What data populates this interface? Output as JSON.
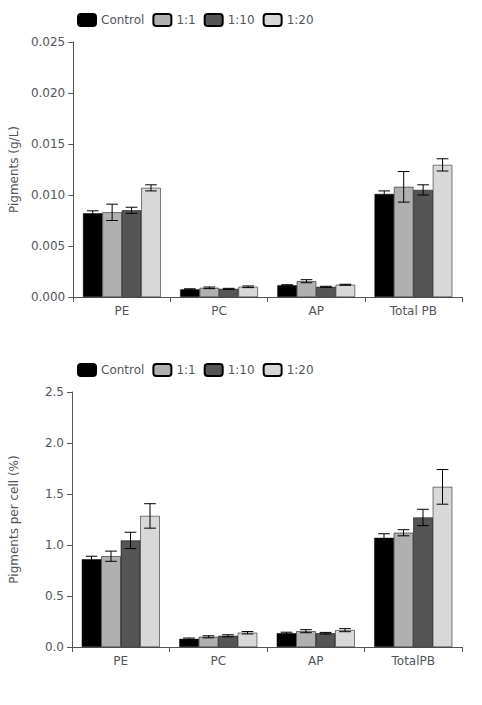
{
  "chart_data": [
    {
      "type": "bar",
      "categories": [
        "PE",
        "PC",
        "AP",
        "Total PB"
      ],
      "ylabel": "Pigments (g/L)",
      "ylim": [
        0,
        0.025
      ],
      "yticks": [
        {
          "value": 0.0,
          "label": "0.000"
        },
        0.005,
        {
          "value": 0.01,
          "label": "0.010"
        },
        0.015,
        {
          "value": 0.02,
          "label": "0.020"
        },
        0.025
      ],
      "grid": false,
      "legend": "upper left",
      "series": [
        {
          "name": "Control",
          "color": "#000000",
          "values": [
            0.0082,
            0.00075,
            0.00115,
            0.0101
          ],
          "errors": [
            0.00025,
            5.5e-05,
            5.5e-05,
            0.0003
          ]
        },
        {
          "name": "1:1",
          "color": "#b0b0b0",
          "values": [
            0.0083,
            0.0009,
            0.00155,
            0.0108
          ],
          "errors": [
            0.0008,
            8e-05,
            0.00015,
            0.0015
          ]
        },
        {
          "name": "1:10",
          "color": "#555555",
          "values": [
            0.0085,
            0.0008,
            0.001,
            0.0105
          ],
          "errors": [
            0.0003,
            5e-05,
            5e-05,
            0.0005
          ]
        },
        {
          "name": "1:20",
          "color": "#d8d8d8",
          "values": [
            0.0107,
            0.001,
            0.0012,
            0.01295
          ],
          "errors": [
            0.0003,
            8e-05,
            5e-05,
            0.0006
          ]
        }
      ]
    },
    {
      "type": "bar",
      "categories": [
        "PE",
        "PC",
        "AP",
        "TotalPB"
      ],
      "ylabel": "Pigments per cell (%)",
      "ylim": [
        0,
        2.5
      ],
      "yticks": [
        {
          "value": 0.0,
          "label": "0.0"
        },
        0.5,
        {
          "value": 1.0,
          "label": "1.0"
        },
        1.5,
        {
          "value": 2.0,
          "label": "2.0"
        },
        2.5
      ],
      "grid": false,
      "legend": "upper left",
      "series": [
        {
          "name": "Control",
          "color": "#000000",
          "values": [
            0.86,
            0.08,
            0.135,
            1.07
          ],
          "errors": [
            0.03,
            0.008,
            0.01,
            0.04
          ]
        },
        {
          "name": "1:1",
          "color": "#b0b0b0",
          "values": [
            0.89,
            0.1,
            0.155,
            1.12
          ],
          "errors": [
            0.05,
            0.01,
            0.015,
            0.03
          ]
        },
        {
          "name": "1:10",
          "color": "#555555",
          "values": [
            1.045,
            0.11,
            0.135,
            1.27
          ],
          "errors": [
            0.08,
            0.01,
            0.008,
            0.08
          ]
        },
        {
          "name": "1:20",
          "color": "#d8d8d8",
          "values": [
            1.285,
            0.14,
            0.165,
            1.57
          ],
          "errors": [
            0.12,
            0.012,
            0.015,
            0.17
          ]
        }
      ]
    }
  ]
}
